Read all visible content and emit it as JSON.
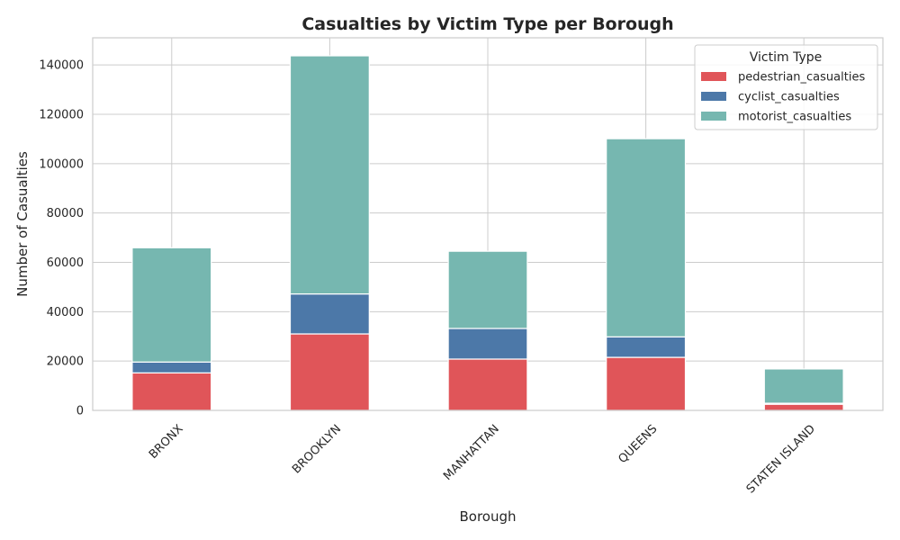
{
  "chart_data": {
    "type": "bar",
    "stacked": true,
    "title": "Casualties by Victim Type per Borough",
    "xlabel": "Borough",
    "ylabel": "Number of Casualties",
    "categories": [
      "BRONX",
      "BROOKLYN",
      "MANHATTAN",
      "QUEENS",
      "STATEN ISLAND"
    ],
    "series": [
      {
        "name": "pedestrian_casualties",
        "color": "#e05559",
        "values": [
          15200,
          31000,
          20800,
          21500,
          2500
        ]
      },
      {
        "name": "cyclist_casualties",
        "color": "#4c78a8",
        "values": [
          4400,
          16200,
          12400,
          8300,
          400
        ]
      },
      {
        "name": "motorist_casualties",
        "color": "#76b7b0",
        "values": [
          46300,
          96500,
          31300,
          80300,
          13900
        ]
      }
    ],
    "ylim": [
      0,
      151000
    ],
    "yticks": [
      0,
      20000,
      40000,
      60000,
      80000,
      100000,
      120000,
      140000
    ],
    "grid": true,
    "legend": {
      "title": "Victim Type",
      "position": "top-right"
    }
  }
}
